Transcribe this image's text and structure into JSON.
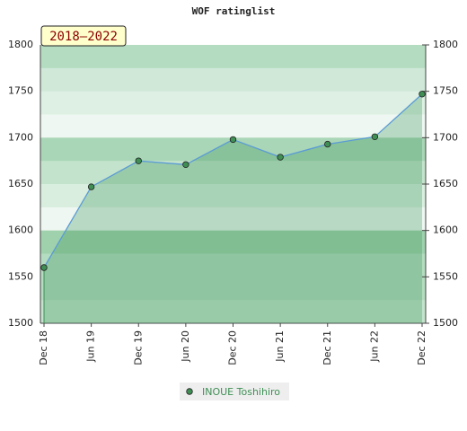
{
  "chart_data": {
    "type": "line",
    "title": "WOF ratinglist",
    "badge": "2018–2022",
    "categories": [
      "Dec 18",
      "Jun 19",
      "Dec 19",
      "Jun 20",
      "Dec 20",
      "Jun 21",
      "Dec 21",
      "Jun 22",
      "Dec 22"
    ],
    "series": [
      {
        "name": "INOUE Toshihiro",
        "color": "#5b9bd5",
        "marker_color": "#3f8f55",
        "values": [
          1560,
          1647,
          1675,
          1671,
          1698,
          1679,
          1693,
          1701,
          1747
        ]
      }
    ],
    "ylim": [
      1500,
      1800
    ],
    "yticks": [
      1500,
      1550,
      1600,
      1650,
      1700,
      1750,
      1800
    ],
    "y2lim": [
      1500,
      1800
    ],
    "y2ticks": [
      1500,
      1550,
      1600,
      1650,
      1700,
      1750,
      1800
    ],
    "legend": "bottom"
  }
}
